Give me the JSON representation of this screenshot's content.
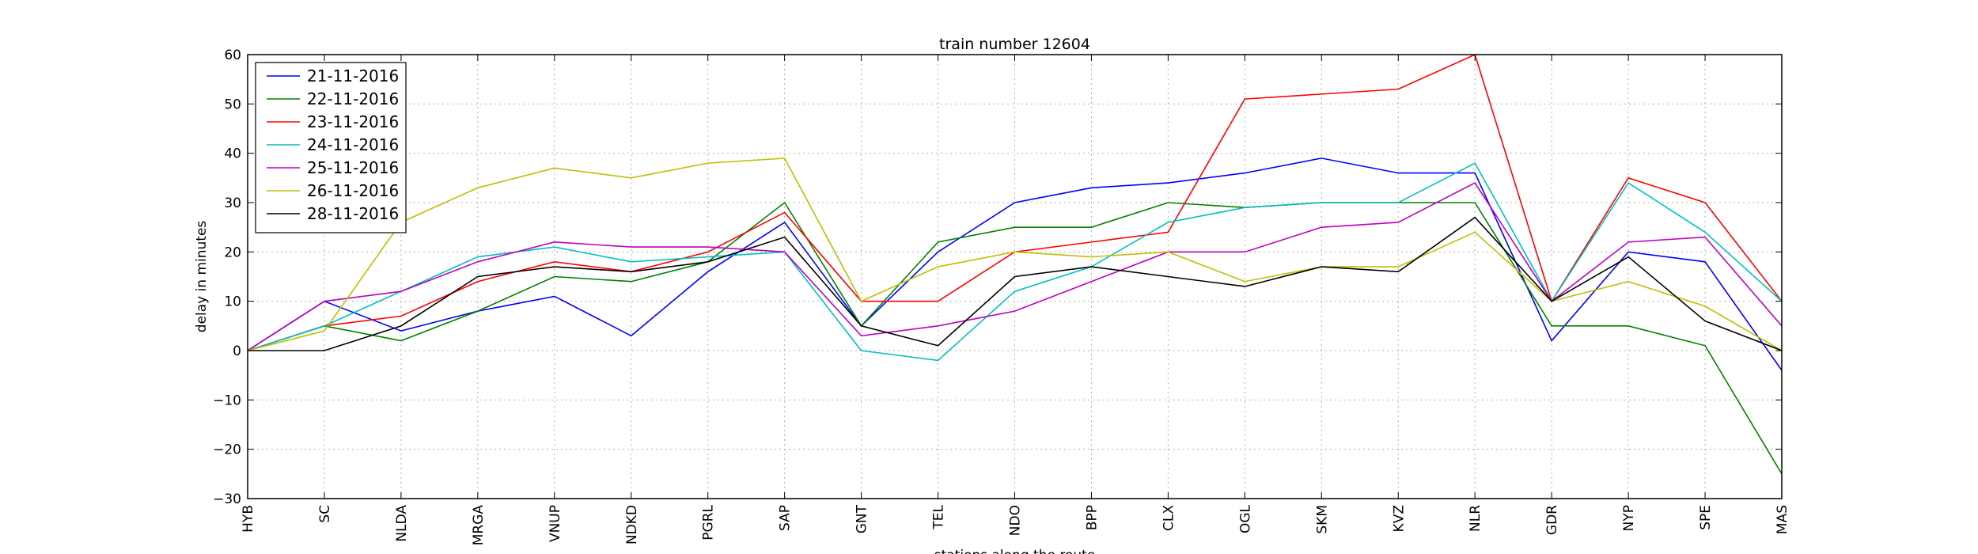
{
  "chart_data": {
    "type": "line",
    "title": "train number 12604",
    "xlabel": "stations along the route",
    "ylabel": "delay in minutes",
    "ylim": [
      -30,
      60
    ],
    "yticks": [
      -30,
      -20,
      -10,
      0,
      10,
      20,
      30,
      40,
      50,
      60
    ],
    "grid": true,
    "legend_position": "top-left",
    "categories": [
      "HYB",
      "SC",
      "NLDA",
      "MRGA",
      "VNUP",
      "NDKD",
      "PGRL",
      "SAP",
      "GNT",
      "TEL",
      "NDO",
      "BPP",
      "CLX",
      "OGL",
      "SKM",
      "KVZ",
      "NLR",
      "GDR",
      "NYP",
      "SPE",
      "MAS"
    ],
    "series": [
      {
        "name": "21-11-2016",
        "color": "#0000ff",
        "values": [
          0,
          10,
          4,
          8,
          11,
          3,
          16,
          26,
          5,
          20,
          30,
          33,
          34,
          36,
          39,
          36,
          36,
          2,
          20,
          18,
          -4
        ]
      },
      {
        "name": "22-11-2016",
        "color": "#008000",
        "values": [
          0,
          5,
          2,
          8,
          15,
          14,
          18,
          30,
          5,
          22,
          25,
          25,
          30,
          29,
          30,
          30,
          30,
          5,
          5,
          1,
          -25
        ]
      },
      {
        "name": "23-11-2016",
        "color": "#ff0000",
        "values": [
          0,
          5,
          7,
          14,
          18,
          16,
          20,
          28,
          10,
          10,
          20,
          22,
          24,
          51,
          52,
          53,
          60,
          10,
          35,
          30,
          10
        ]
      },
      {
        "name": "24-11-2016",
        "color": "#00bfbf",
        "values": [
          0,
          5,
          12,
          19,
          21,
          18,
          19,
          20,
          0,
          -2,
          12,
          17,
          26,
          29,
          30,
          30,
          38,
          10,
          34,
          24,
          10
        ]
      },
      {
        "name": "25-11-2016",
        "color": "#bf00bf",
        "values": [
          0,
          10,
          12,
          18,
          22,
          21,
          21,
          20,
          3,
          5,
          8,
          14,
          20,
          20,
          25,
          26,
          34,
          10,
          22,
          23,
          5
        ]
      },
      {
        "name": "26-11-2016",
        "color": "#bfbf00",
        "values": [
          0,
          4,
          26,
          33,
          37,
          35,
          38,
          39,
          10,
          17,
          20,
          19,
          20,
          14,
          17,
          17,
          24,
          10,
          14,
          9,
          0
        ]
      },
      {
        "name": "28-11-2016",
        "color": "#000000",
        "values": [
          0,
          0,
          5,
          15,
          17,
          16,
          18,
          23,
          5,
          1,
          15,
          17,
          15,
          13,
          17,
          16,
          27,
          10,
          19,
          6,
          0
        ]
      }
    ]
  }
}
